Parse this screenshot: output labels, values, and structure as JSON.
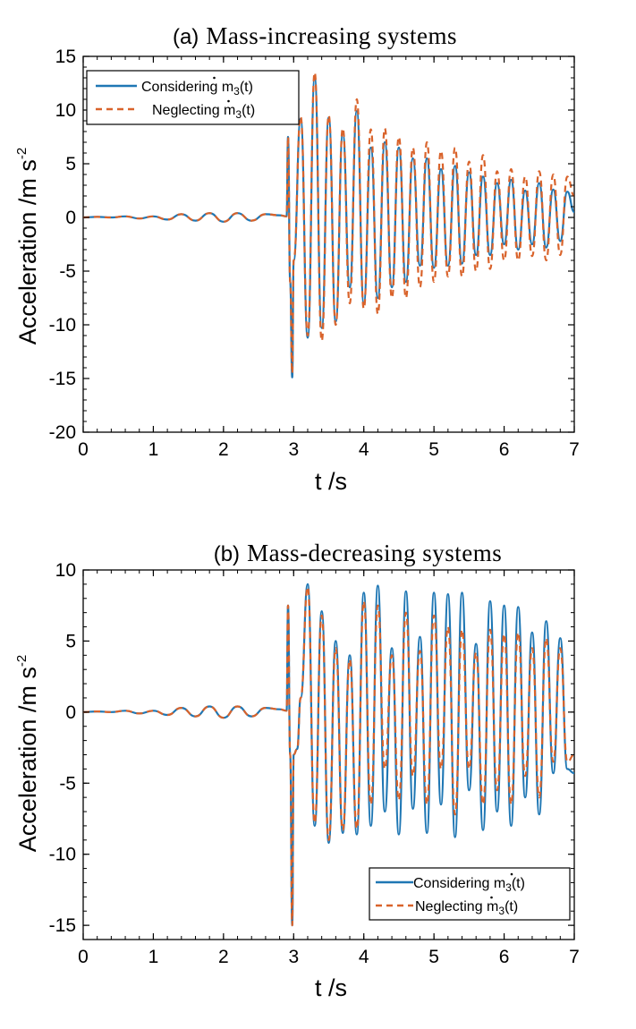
{
  "chart_data": [
    {
      "type": "line",
      "panel_label": "(a)",
      "title": "Mass-increasing systems",
      "xlabel": "t /s",
      "ylabel": "Acceleration /m s",
      "ylabel_sup": "-2",
      "xlim": [
        0,
        7
      ],
      "ylim": [
        -20,
        15
      ],
      "xticks": [
        "0",
        "1",
        "2",
        "3",
        "4",
        "5",
        "6",
        "7"
      ],
      "yticks": [
        "15",
        "10",
        "5",
        "0",
        "-5",
        "-10",
        "-15",
        "-20"
      ],
      "grid": false,
      "legend_position": "top-left",
      "series": [
        {
          "name": "Considering ṁ3(t)",
          "color": "#1f77b4",
          "style": "solid",
          "x": [
            0,
            0.2,
            0.4,
            0.6,
            0.8,
            1.0,
            1.2,
            1.4,
            1.6,
            1.8,
            2.0,
            2.2,
            2.4,
            2.6,
            2.8,
            2.9,
            2.92,
            2.95,
            2.98,
            3.0,
            3.1,
            3.2,
            3.3,
            3.4,
            3.5,
            3.6,
            3.7,
            3.8,
            3.9,
            4.0,
            4.1,
            4.2,
            4.3,
            4.4,
            4.5,
            4.6,
            4.7,
            4.8,
            4.9,
            5.0,
            5.1,
            5.2,
            5.3,
            5.4,
            5.5,
            5.6,
            5.7,
            5.8,
            5.9,
            6.0,
            6.1,
            6.2,
            6.3,
            6.4,
            6.5,
            6.6,
            6.7,
            6.8,
            6.9,
            7.0
          ],
          "values": [
            0,
            0.05,
            0,
            0.1,
            -0.1,
            0.1,
            -0.2,
            0.3,
            -0.3,
            0.4,
            -0.4,
            0.4,
            -0.3,
            0.3,
            0.2,
            0.1,
            7.5,
            -6,
            -14.9,
            -4,
            9.2,
            -11.2,
            13,
            -10.3,
            9.3,
            -9.7,
            7.8,
            -6.5,
            9.9,
            -8,
            6.5,
            -7.5,
            7,
            -6.5,
            6.5,
            -6,
            5.5,
            -4.5,
            5.5,
            -4.7,
            4.5,
            -4.5,
            4.8,
            -4.3,
            4.2,
            -3.5,
            3.8,
            -3.5,
            3.2,
            -2.5,
            3.5,
            -3.0,
            2.5,
            -2.5,
            3.2,
            -2.8,
            2.6,
            -2.2,
            2.4,
            0.5
          ]
        },
        {
          "name": "Neglecting ṁ3(t)",
          "color": "#d9632b",
          "style": "dashed",
          "x": [
            0,
            0.2,
            0.4,
            0.6,
            0.8,
            1.0,
            1.2,
            1.4,
            1.6,
            1.8,
            2.0,
            2.2,
            2.4,
            2.6,
            2.8,
            2.9,
            2.92,
            2.95,
            2.98,
            3.0,
            3.1,
            3.2,
            3.3,
            3.4,
            3.5,
            3.6,
            3.7,
            3.8,
            3.9,
            4.0,
            4.1,
            4.2,
            4.3,
            4.4,
            4.5,
            4.6,
            4.7,
            4.8,
            4.9,
            5.0,
            5.1,
            5.2,
            5.3,
            5.4,
            5.5,
            5.6,
            5.7,
            5.8,
            5.9,
            6.0,
            6.1,
            6.2,
            6.3,
            6.4,
            6.5,
            6.6,
            6.7,
            6.8,
            6.9,
            7.0
          ],
          "values": [
            0,
            0.05,
            0,
            0.1,
            -0.1,
            0.1,
            -0.2,
            0.3,
            -0.3,
            0.4,
            -0.4,
            0.4,
            -0.3,
            0.3,
            0.2,
            0.1,
            7.5,
            -6,
            -14.5,
            -4,
            9.4,
            -11,
            13.5,
            -11.5,
            9.5,
            -10,
            8.3,
            -8,
            11,
            -8.5,
            8.2,
            -9,
            8.3,
            -7.5,
            7.5,
            -7.5,
            6.5,
            -6.5,
            7,
            -6,
            6.2,
            -5.5,
            6.5,
            -5.5,
            5.2,
            -5,
            5.8,
            -4.8,
            4.3,
            -4.0,
            4.5,
            -4.0,
            3.8,
            -3.6,
            4.3,
            -4.0,
            4.0,
            -3.5,
            3.8,
            2.0
          ]
        }
      ]
    },
    {
      "type": "line",
      "panel_label": "(b)",
      "title": "Mass-decreasing systems",
      "xlabel": "t /s",
      "ylabel": "Acceleration /m s",
      "ylabel_sup": "-2",
      "xlim": [
        0,
        7
      ],
      "ylim": [
        -16,
        10
      ],
      "xticks": [
        "0",
        "1",
        "2",
        "3",
        "4",
        "5",
        "6",
        "7"
      ],
      "yticks": [
        "10",
        "5",
        "0",
        "-5",
        "-10",
        "-15"
      ],
      "grid": false,
      "legend_position": "bottom-right",
      "series": [
        {
          "name": "Considering ṁ3(t)",
          "color": "#1f77b4",
          "style": "solid",
          "x": [
            0,
            0.2,
            0.4,
            0.6,
            0.8,
            1.0,
            1.2,
            1.4,
            1.6,
            1.8,
            2.0,
            2.2,
            2.4,
            2.6,
            2.8,
            2.9,
            2.92,
            2.95,
            2.98,
            3.0,
            3.05,
            3.1,
            3.2,
            3.3,
            3.4,
            3.5,
            3.6,
            3.7,
            3.8,
            3.9,
            4.0,
            4.1,
            4.2,
            4.3,
            4.4,
            4.5,
            4.6,
            4.7,
            4.8,
            4.9,
            5.0,
            5.1,
            5.2,
            5.3,
            5.4,
            5.5,
            5.6,
            5.7,
            5.8,
            5.9,
            6.0,
            6.1,
            6.2,
            6.3,
            6.4,
            6.5,
            6.6,
            6.7,
            6.8,
            6.9,
            7.0
          ],
          "values": [
            0,
            0.05,
            0,
            0.1,
            -0.1,
            0.1,
            -0.2,
            0.3,
            -0.3,
            0.4,
            -0.4,
            0.4,
            -0.3,
            0.3,
            0.2,
            0.1,
            7.5,
            -3,
            -15,
            -3,
            -2.6,
            1,
            9.0,
            -8,
            7.1,
            -9.2,
            5.0,
            -8.5,
            4.0,
            -8.6,
            8.4,
            -8,
            8.9,
            -7.0,
            4.5,
            -8.6,
            8.5,
            -6.8,
            5.3,
            -8.5,
            8.4,
            -6.5,
            8.3,
            -8.8,
            8.4,
            -5.5,
            4.8,
            -8.3,
            7.8,
            -7.0,
            7.5,
            -8.0,
            7.4,
            -6.0,
            5.6,
            -7.2,
            6.4,
            -4.3,
            5.2,
            -4.0,
            -4.3
          ]
        },
        {
          "name": "Neglecting ṁ3(t)",
          "color": "#d9632b",
          "style": "dashed",
          "x": [
            0,
            0.2,
            0.4,
            0.6,
            0.8,
            1.0,
            1.2,
            1.4,
            1.6,
            1.8,
            2.0,
            2.2,
            2.4,
            2.6,
            2.8,
            2.9,
            2.92,
            2.95,
            2.98,
            3.0,
            3.05,
            3.1,
            3.2,
            3.3,
            3.4,
            3.5,
            3.6,
            3.7,
            3.8,
            3.9,
            4.0,
            4.1,
            4.2,
            4.3,
            4.4,
            4.5,
            4.6,
            4.7,
            4.8,
            4.9,
            5.0,
            5.1,
            5.2,
            5.3,
            5.4,
            5.5,
            5.6,
            5.7,
            5.8,
            5.9,
            6.0,
            6.1,
            6.2,
            6.3,
            6.4,
            6.5,
            6.6,
            6.7,
            6.8,
            6.9,
            7.0
          ],
          "values": [
            0,
            0.05,
            0,
            0.1,
            -0.1,
            0.1,
            -0.2,
            0.3,
            -0.3,
            0.4,
            -0.4,
            0.4,
            -0.3,
            0.3,
            0.2,
            0.1,
            7.5,
            -3,
            -15,
            -3,
            -2.6,
            1,
            8.8,
            -7.8,
            6.8,
            -9.0,
            4.5,
            -8.3,
            3.7,
            -8.2,
            7.8,
            -6.5,
            7.5,
            -4.0,
            4.0,
            -6.2,
            7.0,
            -4.5,
            4.3,
            -6.5,
            6.8,
            -4.0,
            6.0,
            -7.2,
            5.8,
            -4.0,
            4.2,
            -6.5,
            5.8,
            -5.5,
            5.5,
            -6.5,
            5.6,
            -4.5,
            4.5,
            -6.0,
            5.2,
            -3.5,
            4.5,
            -3.5,
            -3.0
          ]
        }
      ]
    }
  ],
  "legend_labels": {
    "considering_prefix": "Considering ",
    "neglecting_prefix": "Neglecting ",
    "m_char": "m",
    "sub": "3",
    "suffix": "(t)"
  }
}
